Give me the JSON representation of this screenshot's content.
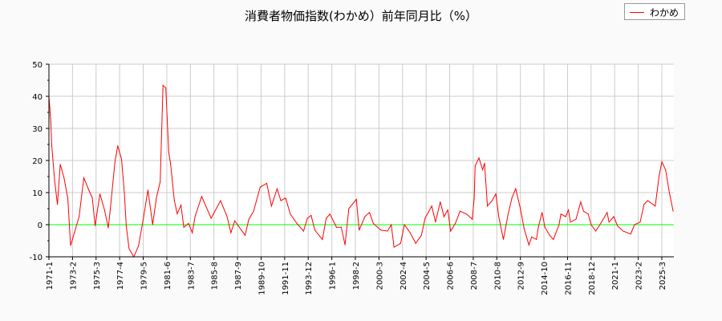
{
  "chart_data": {
    "type": "line",
    "title": "消費者物価指数(わかめ）前年同月比（%）",
    "xlabel": "",
    "ylabel": "",
    "ylim": [
      -10,
      50
    ],
    "yticks": [
      "-10",
      "0",
      "10",
      "20",
      "30",
      "40",
      "50"
    ],
    "xticks": [
      "1971-1",
      "1973-2",
      "1975-3",
      "1977-4",
      "1979-5",
      "1981-6",
      "1983-7",
      "1985-8",
      "1987-9",
      "1989-10",
      "1991-11",
      "1993-12",
      "1996-1",
      "1998-2",
      "2000-3",
      "2002-4",
      "2004-5",
      "2006-6",
      "2008-7",
      "2010-8",
      "2012-9",
      "2014-10",
      "2016-11",
      "2018-12",
      "2021-1",
      "2023-2",
      "2025-3"
    ],
    "grid": true,
    "legend_position": "top-right",
    "reference_line": {
      "y": 0,
      "color": "#00ff00"
    },
    "series": [
      {
        "name": "わかめ",
        "color": "#ff0000",
        "x": [
          "1971-01",
          "1971-03",
          "1971-04",
          "1971-07",
          "1971-10",
          "1972-01",
          "1972-05",
          "1972-09",
          "1972-12",
          "1973-04",
          "1973-09",
          "1974-02",
          "1974-07",
          "1974-11",
          "1975-02",
          "1975-07",
          "1975-12",
          "1976-04",
          "1976-06",
          "1976-11",
          "1977-02",
          "1977-06",
          "1977-09",
          "1977-11",
          "1978-02",
          "1978-07",
          "1978-12",
          "1979-05",
          "1979-10",
          "1980-03",
          "1980-07",
          "1980-11",
          "1981-02",
          "1981-05",
          "1981-08",
          "1981-10",
          "1982-02",
          "1982-05",
          "1982-09",
          "1982-12",
          "1983-05",
          "1983-09",
          "1983-12",
          "1984-07",
          "1985-05",
          "1986-03",
          "1986-10",
          "1987-02",
          "1987-06",
          "1988-05",
          "1988-09",
          "1989-02",
          "1989-09",
          "1990-04",
          "1990-09",
          "1991-03",
          "1991-07",
          "1991-12",
          "1992-05",
          "1992-12",
          "1993-07",
          "1993-11",
          "1994-03",
          "1994-07",
          "1995-03",
          "1995-07",
          "1995-11",
          "1996-06",
          "1996-11",
          "1997-03",
          "1997-07",
          "1998-03",
          "1998-06",
          "1998-12",
          "1999-05",
          "1999-09",
          "2000-05",
          "2000-12",
          "2001-04",
          "2001-07",
          "2002-02",
          "2002-06",
          "2002-12",
          "2003-06",
          "2003-12",
          "2004-04",
          "2004-11",
          "2005-03",
          "2005-08",
          "2005-12",
          "2006-04",
          "2006-07",
          "2006-12",
          "2007-05",
          "2007-12",
          "2008-06",
          "2008-08",
          "2008-09",
          "2009-01",
          "2009-05",
          "2009-07",
          "2009-10",
          "2010-03",
          "2010-07",
          "2010-10",
          "2011-03",
          "2011-08",
          "2011-12",
          "2012-04",
          "2012-09",
          "2013-01",
          "2013-06",
          "2013-09",
          "2014-02",
          "2014-04",
          "2014-08",
          "2014-11",
          "2015-04",
          "2015-08",
          "2016-02",
          "2016-04",
          "2016-09",
          "2016-12",
          "2017-02",
          "2017-08",
          "2018-01",
          "2018-04",
          "2018-09",
          "2018-12",
          "2019-05",
          "2019-11",
          "2020-05",
          "2020-07",
          "2020-12",
          "2021-04",
          "2021-10",
          "2022-06",
          "2022-10",
          "2023-04",
          "2023-08",
          "2023-12",
          "2024-08",
          "2024-12",
          "2025-03",
          "2025-07",
          "2025-11",
          "2026-03"
        ],
        "values": [
          40,
          32,
          24.6,
          13.8,
          6.3,
          18.8,
          14.6,
          8.3,
          -6.5,
          -2.5,
          2.5,
          14.6,
          11,
          8.3,
          -0.3,
          9.6,
          4.6,
          -1,
          4.6,
          19.6,
          24.6,
          20.4,
          10,
          -0.4,
          -7.5,
          -10,
          -6.6,
          1.6,
          10.8,
          0,
          8.4,
          13.4,
          43.4,
          42.6,
          22.6,
          19,
          7.6,
          3.4,
          6.1,
          -0.8,
          0.4,
          -2.5,
          2.6,
          8.8,
          2,
          7.5,
          2.5,
          -2.5,
          1.2,
          -3.3,
          1.7,
          4.2,
          11.7,
          12.9,
          5.8,
          11.2,
          7.5,
          8.3,
          3.3,
          0.4,
          -2,
          2,
          2.9,
          -1.7,
          -4.6,
          2,
          3.3,
          -0.8,
          -0.8,
          -6.3,
          5,
          7.9,
          -1.7,
          2.5,
          3.8,
          0.4,
          -1.7,
          -2,
          0,
          -7,
          -5.8,
          0,
          -2.5,
          -5.8,
          -3.3,
          2.1,
          5.8,
          0.8,
          7.1,
          2.5,
          4.6,
          -2,
          0.4,
          4.2,
          3.3,
          1.7,
          8.3,
          18.3,
          20.8,
          17.1,
          19.2,
          5.8,
          7.5,
          9.6,
          2.5,
          -4.6,
          3.3,
          8.3,
          11.2,
          5,
          -1.3,
          -6.3,
          -3.8,
          -4.6,
          -0.8,
          3.8,
          -0.8,
          -3.3,
          -4.6,
          0,
          3.3,
          2.5,
          4.6,
          0.8,
          1.7,
          7.1,
          4.2,
          3.3,
          0,
          -2,
          0.8,
          3.8,
          0.8,
          2.5,
          -0.4,
          -2,
          -2.9,
          0,
          0.8,
          6.3,
          7.5,
          5.8,
          15,
          19.6,
          17.1,
          10,
          4.2
        ]
      }
    ]
  }
}
